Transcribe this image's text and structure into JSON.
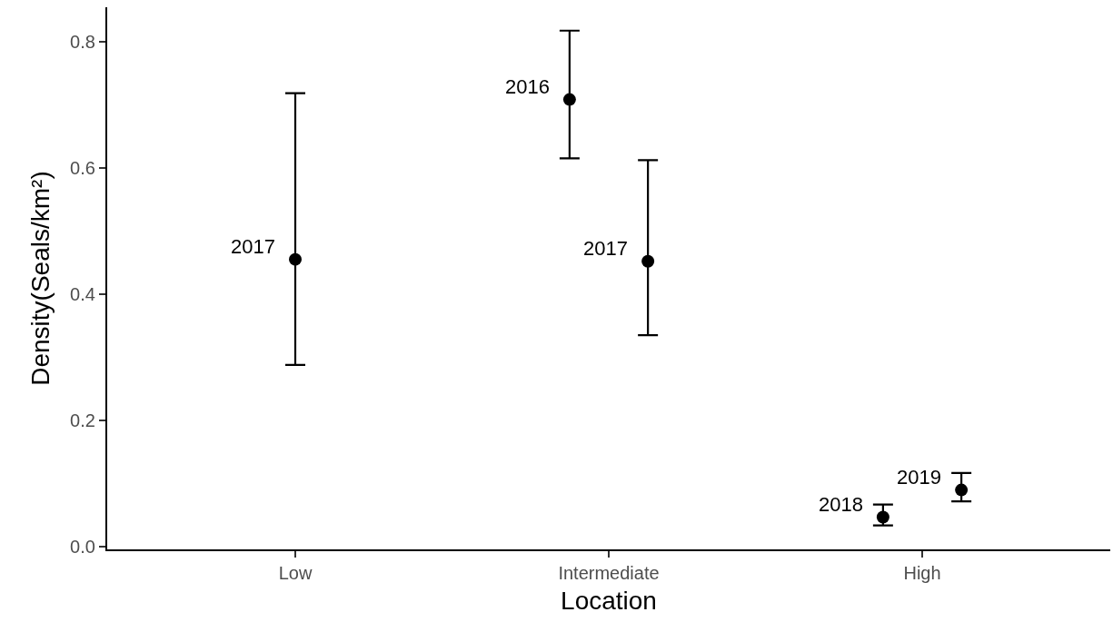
{
  "chart_data": {
    "type": "scatter",
    "xlabel": "Location",
    "ylabel": "Density(Seals/km²)",
    "categories": [
      "Low",
      "Intermediate",
      "High"
    ],
    "series": [
      {
        "name": "2016",
        "color": "#000000",
        "values": [
          null,
          0.708,
          null
        ],
        "errors": [
          null,
          [
            0.615,
            0.817
          ],
          null
        ]
      },
      {
        "name": "2017",
        "color": "#000000",
        "values": [
          0.455,
          0.452,
          null
        ],
        "errors": [
          [
            0.288,
            0.718
          ],
          [
            0.335,
            0.612
          ],
          null
        ]
      },
      {
        "name": "2018",
        "color": "#000000",
        "values": [
          null,
          null,
          0.047
        ],
        "errors": [
          null,
          null,
          [
            0.034,
            0.067
          ]
        ]
      },
      {
        "name": "2019",
        "color": "#000000",
        "values": [
          null,
          null,
          0.09
        ],
        "errors": [
          null,
          null,
          [
            0.072,
            0.117
          ]
        ]
      }
    ],
    "marker": "circle",
    "ylim": [
      -0.004,
      0.854
    ],
    "yticks": [
      {
        "value": 0,
        "label": "0.0"
      },
      {
        "value": 0.2,
        "label": "0.2"
      },
      {
        "value": 0.4,
        "label": "0.4"
      },
      {
        "value": 0.6,
        "label": "0.6"
      },
      {
        "value": 0.8,
        "label": "0.8"
      }
    ],
    "grid": false,
    "legend": false
  }
}
